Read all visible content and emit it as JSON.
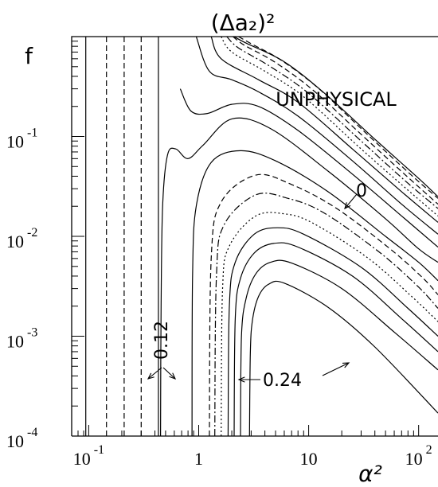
{
  "chart_data": {
    "type": "contour",
    "title": "(Δa₂)²",
    "xlabel": "α²",
    "ylabel": "f",
    "x_scale": "log",
    "y_scale": "log",
    "xlim": [
      0.07,
      150
    ],
    "ylim": [
      0.0001,
      1
    ],
    "x_ticks": [
      {
        "value": 0.1,
        "base": "10",
        "exp": "-1"
      },
      {
        "value": 1,
        "base": "1",
        "exp": ""
      },
      {
        "value": 10,
        "base": "10",
        "exp": ""
      },
      {
        "value": 100,
        "base": "10",
        "exp": "2"
      }
    ],
    "y_ticks": [
      {
        "value": 0.1,
        "base": "10",
        "exp": "-1"
      },
      {
        "value": 0.01,
        "base": "10",
        "exp": "-2"
      },
      {
        "value": 0.001,
        "base": "10",
        "exp": "-3"
      },
      {
        "value": 0.0001,
        "base": "10",
        "exp": "-4"
      }
    ],
    "region_label": "UNPHYSICAL",
    "contour_labels": [
      {
        "text": "0",
        "value": 0
      },
      {
        "text": "0.12",
        "value": 0.12
      },
      {
        "text": "0.24",
        "value": 0.24
      }
    ],
    "contours": [
      {
        "style": "solid",
        "points": [
          [
            2.9,
            0.0001
          ],
          [
            2.95,
            0.0007
          ],
          [
            3.1,
            0.0015
          ],
          [
            3.5,
            0.0025
          ],
          [
            4.3,
            0.0033
          ],
          [
            6,
            0.0034
          ],
          [
            15,
            0.00195
          ],
          [
            40,
            0.00078
          ],
          [
            150,
            0.00017
          ]
        ]
      },
      {
        "style": "solid",
        "points": [
          [
            2.4,
            0.0001
          ],
          [
            2.45,
            0.001
          ],
          [
            2.7,
            0.0024
          ],
          [
            3.3,
            0.0042
          ],
          [
            4.5,
            0.0055
          ],
          [
            7,
            0.0054
          ],
          [
            20,
            0.003
          ],
          [
            60,
            0.0011
          ],
          [
            150,
            0.00046
          ]
        ]
      },
      {
        "style": "solid",
        "points": [
          [
            2.1,
            0.0001
          ],
          [
            2.15,
            0.0015
          ],
          [
            2.4,
            0.0038
          ],
          [
            3.2,
            0.0068
          ],
          [
            4.8,
            0.0085
          ],
          [
            8,
            0.0078
          ],
          [
            25,
            0.004
          ],
          [
            70,
            0.0015
          ],
          [
            150,
            0.0007
          ]
        ]
      },
      {
        "style": "solid",
        "points": [
          [
            1.85,
            0.0001
          ],
          [
            1.9,
            0.002
          ],
          [
            2.15,
            0.0055
          ],
          [
            3.2,
            0.0105
          ],
          [
            5.2,
            0.0122
          ],
          [
            9,
            0.0105
          ],
          [
            30,
            0.0049
          ],
          [
            80,
            0.0019
          ],
          [
            150,
            0.001
          ]
        ]
      },
      {
        "style": "dotted",
        "points": [
          [
            1.6,
            0.0001
          ],
          [
            1.65,
            0.003
          ],
          [
            1.9,
            0.008
          ],
          [
            3.3,
            0.016
          ],
          [
            6,
            0.0168
          ],
          [
            11,
            0.0135
          ],
          [
            35,
            0.006
          ],
          [
            90,
            0.0024
          ],
          [
            150,
            0.0014
          ]
        ]
      },
      {
        "style": "dashdot",
        "points": [
          [
            1.4,
            0.0001
          ],
          [
            1.45,
            0.004
          ],
          [
            1.7,
            0.013
          ],
          [
            3.3,
            0.026
          ],
          [
            6.5,
            0.024
          ],
          [
            14,
            0.017
          ],
          [
            45,
            0.0068
          ],
          [
            100,
            0.0031
          ],
          [
            150,
            0.0019
          ]
        ]
      },
      {
        "style": "dashed",
        "points": [
          [
            1.25,
            0.0001
          ],
          [
            1.3,
            0.006
          ],
          [
            1.6,
            0.022
          ],
          [
            3.3,
            0.041
          ],
          [
            7,
            0.033
          ],
          [
            18,
            0.019
          ],
          [
            55,
            0.0075
          ],
          [
            110,
            0.0038
          ],
          [
            150,
            0.0026
          ]
        ]
      },
      {
        "style": "solid",
        "points": [
          [
            0.87,
            0.0001
          ],
          [
            0.88,
            0.004
          ],
          [
            0.95,
            0.02
          ],
          [
            1.3,
            0.055
          ],
          [
            2.4,
            0.072
          ],
          [
            5,
            0.057
          ],
          [
            15,
            0.028
          ],
          [
            50,
            0.01
          ],
          [
            100,
            0.0055
          ],
          [
            150,
            0.0036
          ]
        ]
      },
      {
        "style": "solid",
        "points": [
          [
            0.45,
            0.0001
          ],
          [
            0.455,
            0.002
          ],
          [
            0.47,
            0.02
          ],
          [
            0.52,
            0.065
          ],
          [
            0.62,
            0.075
          ],
          [
            0.8,
            0.06
          ],
          [
            1.1,
            0.082
          ],
          [
            2,
            0.15
          ],
          [
            4.5,
            0.12
          ],
          [
            15,
            0.045
          ],
          [
            50,
            0.015
          ],
          [
            100,
            0.0075
          ],
          [
            150,
            0.0055
          ]
        ]
      },
      {
        "style": "solid",
        "points": [
          [
            0.68,
            0.3
          ],
          [
            0.85,
            0.18
          ],
          [
            1.2,
            0.17
          ],
          [
            2,
            0.21
          ],
          [
            3.5,
            0.2
          ],
          [
            8,
            0.115
          ],
          [
            25,
            0.042
          ],
          [
            70,
            0.016
          ],
          [
            150,
            0.0078
          ]
        ]
      },
      {
        "style": "solid",
        "points": [
          [
            0.95,
            1
          ],
          [
            1.25,
            0.45
          ],
          [
            2,
            0.37
          ],
          [
            3.5,
            0.28
          ],
          [
            8,
            0.16
          ],
          [
            25,
            0.057
          ],
          [
            70,
            0.021
          ],
          [
            150,
            0.0105
          ]
        ]
      },
      {
        "style": "solid",
        "points": [
          [
            1.3,
            1
          ],
          [
            1.6,
            0.6
          ],
          [
            3.5,
            0.37
          ],
          [
            8,
            0.22
          ],
          [
            25,
            0.075
          ],
          [
            70,
            0.028
          ],
          [
            150,
            0.0138
          ]
        ]
      },
      {
        "style": "dotted",
        "points": [
          [
            1.6,
            1
          ],
          [
            2,
            0.7
          ],
          [
            4,
            0.45
          ],
          [
            9,
            0.25
          ],
          [
            30,
            0.075
          ],
          [
            80,
            0.029
          ],
          [
            150,
            0.016
          ]
        ]
      },
      {
        "style": "dashdot",
        "points": [
          [
            1.8,
            1
          ],
          [
            2.3,
            0.77
          ],
          [
            4.5,
            0.5
          ],
          [
            10,
            0.27
          ],
          [
            30,
            0.09
          ],
          [
            80,
            0.034
          ],
          [
            150,
            0.019
          ]
        ]
      },
      {
        "style": "dashed",
        "points": [
          [
            2.05,
            1
          ],
          [
            2.6,
            0.82
          ],
          [
            5,
            0.55
          ],
          [
            11,
            0.29
          ],
          [
            30,
            0.105
          ],
          [
            80,
            0.039
          ],
          [
            150,
            0.021
          ]
        ]
      },
      {
        "style": "dashed",
        "points": [
          [
            2.3,
            1
          ],
          [
            3,
            0.85
          ],
          [
            5.5,
            0.59
          ],
          [
            12,
            0.31
          ],
          [
            30,
            0.12
          ],
          [
            80,
            0.044
          ],
          [
            150,
            0.024
          ]
        ]
      },
      {
        "style": "solid",
        "points": [
          [
            2.1,
            1
          ],
          [
            2.7,
            0.86
          ],
          [
            6,
            0.56
          ],
          [
            14,
            0.27
          ],
          [
            40,
            0.094
          ],
          [
            100,
            0.038
          ],
          [
            150,
            0.025
          ]
        ]
      },
      {
        "style": "solid",
        "points": [
          [
            0.43,
            0.0001
          ],
          [
            0.43,
            1
          ]
        ]
      },
      {
        "style": "dashed",
        "points": [
          [
            0.3,
            0.0001
          ],
          [
            0.3,
            1
          ]
        ]
      },
      {
        "style": "dashed",
        "points": [
          [
            0.21,
            0.0001
          ],
          [
            0.21,
            1
          ]
        ]
      },
      {
        "style": "dashed",
        "points": [
          [
            0.145,
            0.0001
          ],
          [
            0.145,
            1
          ]
        ]
      },
      {
        "style": "solid",
        "points": [
          [
            0.094,
            0.0001
          ],
          [
            0.094,
            1
          ]
        ]
      }
    ]
  }
}
